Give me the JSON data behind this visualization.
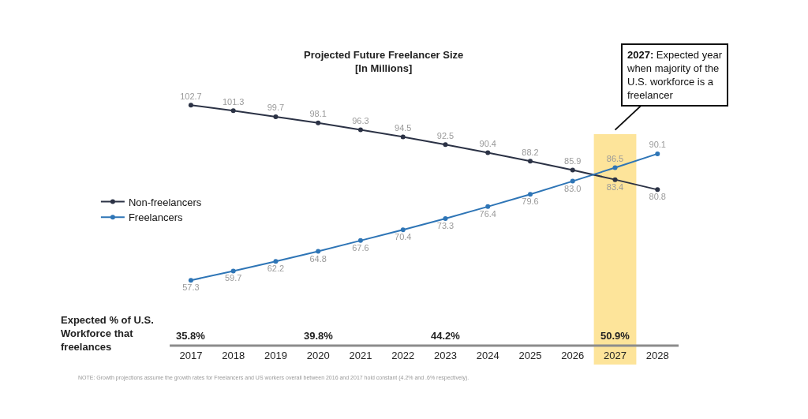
{
  "chart_data": {
    "type": "line",
    "title": "Projected Future Freelancer Size",
    "subtitle": "[In Millions]",
    "categories": [
      "2017",
      "2018",
      "2019",
      "2020",
      "2021",
      "2022",
      "2023",
      "2024",
      "2025",
      "2026",
      "2027",
      "2028"
    ],
    "series": [
      {
        "name": "Non-freelancers",
        "color": "#2b3245",
        "values": [
          102.7,
          101.3,
          99.7,
          98.1,
          96.3,
          94.5,
          92.5,
          90.4,
          88.2,
          85.9,
          83.4,
          80.8
        ],
        "value_labels": [
          "102.7",
          "101.3",
          "99.7",
          "98.1",
          "96.3",
          "94.5",
          "92.5",
          "90.4",
          "88.2",
          "85.9",
          "83.4",
          "80.8"
        ]
      },
      {
        "name": "Freelancers",
        "color": "#2e75b6",
        "values": [
          57.3,
          59.7,
          62.2,
          64.8,
          67.6,
          70.4,
          73.3,
          76.4,
          79.6,
          83.0,
          86.5,
          90.1
        ],
        "value_labels": [
          "57.3",
          "59.7",
          "62.2",
          "64.8",
          "67.6",
          "70.4",
          "73.3",
          "76.4",
          "79.6",
          "83.0",
          "86.5",
          "90.1"
        ]
      }
    ],
    "marker": "circle",
    "legend": "left",
    "tick_labels": "x",
    "bands": [
      {
        "axis": "x",
        "from": "2027",
        "to": "2027",
        "color": "#fde49a"
      }
    ],
    "annotations": [
      "2027: Expected year when majority of the U.S. workforce is a freelancer",
      "Expected % of U.S. Workforce that freelances",
      "35.8%",
      "39.8%",
      "44.2%",
      "50.9%",
      "NOTE: Growth projections assume the growth rates for Freelancers and US workers overall between 2016 and 2017 hold constant (4.2% and .6% respectively)."
    ]
  }
}
